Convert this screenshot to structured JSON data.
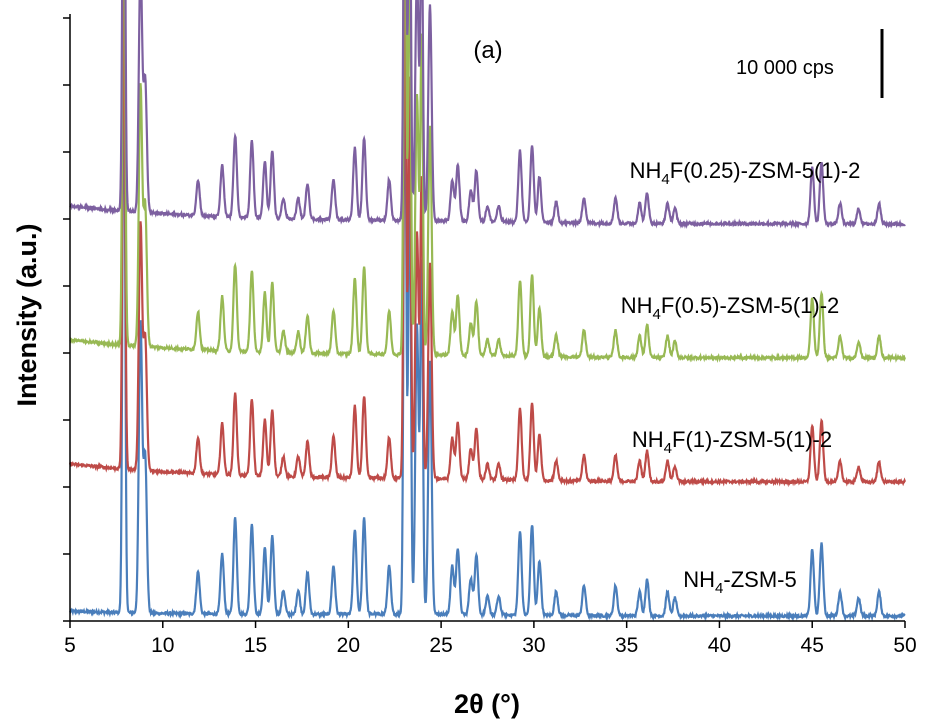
{
  "chart_data": {
    "type": "line",
    "panel_label": "(a)",
    "xlabel": "2θ (°)",
    "ylabel": "Intensity (a.u.)",
    "xlim": [
      5,
      50
    ],
    "x_ticks": [
      5,
      10,
      15,
      20,
      25,
      30,
      35,
      40,
      45,
      50
    ],
    "y_tick_labels_shown": false,
    "grid": false,
    "legend": "none (series labelled inline above each trace)",
    "scale_bar": {
      "label": "10 000 cps",
      "value_cps": 10000
    },
    "peaks": [
      [
        7.9,
        1.0
      ],
      [
        8.8,
        0.48
      ],
      [
        9.05,
        0.26
      ],
      [
        11.9,
        0.07
      ],
      [
        13.2,
        0.1
      ],
      [
        13.9,
        0.16
      ],
      [
        14.8,
        0.15
      ],
      [
        15.5,
        0.11
      ],
      [
        15.9,
        0.13
      ],
      [
        16.5,
        0.04
      ],
      [
        17.3,
        0.04
      ],
      [
        17.8,
        0.07
      ],
      [
        19.2,
        0.08
      ],
      [
        20.35,
        0.14
      ],
      [
        20.85,
        0.16
      ],
      [
        22.2,
        0.08
      ],
      [
        23.05,
        1.0
      ],
      [
        23.3,
        0.78
      ],
      [
        23.7,
        0.48
      ],
      [
        23.95,
        0.58
      ],
      [
        24.4,
        0.42
      ],
      [
        25.6,
        0.08
      ],
      [
        25.9,
        0.11
      ],
      [
        26.6,
        0.06
      ],
      [
        26.9,
        0.1
      ],
      [
        27.5,
        0.03
      ],
      [
        28.1,
        0.03
      ],
      [
        29.25,
        0.14
      ],
      [
        29.9,
        0.15
      ],
      [
        30.3,
        0.09
      ],
      [
        31.2,
        0.04
      ],
      [
        32.7,
        0.05
      ],
      [
        34.4,
        0.05
      ],
      [
        35.7,
        0.04
      ],
      [
        36.1,
        0.06
      ],
      [
        37.2,
        0.04
      ],
      [
        37.6,
        0.03
      ],
      [
        45.0,
        0.11
      ],
      [
        45.5,
        0.12
      ],
      [
        46.5,
        0.04
      ],
      [
        47.5,
        0.03
      ],
      [
        48.6,
        0.04
      ]
    ],
    "series": [
      {
        "name": "NH4-ZSM-5",
        "label_main": "NH",
        "label_sub": "4",
        "label_rest": "-ZSM-5",
        "color": "#4a7ebb",
        "offset": 0.0,
        "start_level": 0.07,
        "scale": 1.0
      },
      {
        "name": "NH4F(1)-ZSM-5(1)-2",
        "label_main": "NH",
        "label_sub": "4",
        "label_rest": "F(1)-ZSM-5(1)-2",
        "color": "#be4b48",
        "offset": 2.0,
        "start_level": 0.27,
        "scale": 0.85
      },
      {
        "name": "NH4F(0.5)-ZSM-5(1)-2",
        "label_main": "NH",
        "label_sub": "4",
        "label_rest": "F(0.5)-ZSM-5(1)-2",
        "color": "#98b954",
        "offset": 3.85,
        "start_level": 0.27,
        "scale": 0.9
      },
      {
        "name": "NH4F(0.25)-ZSM-5(1)-2",
        "label_main": "NH",
        "label_sub": "4",
        "label_rest": "F(0.25)-ZSM-5(1)-2",
        "color": "#7d60a0",
        "offset": 5.85,
        "start_level": 0.27,
        "scale": 0.85
      }
    ]
  }
}
